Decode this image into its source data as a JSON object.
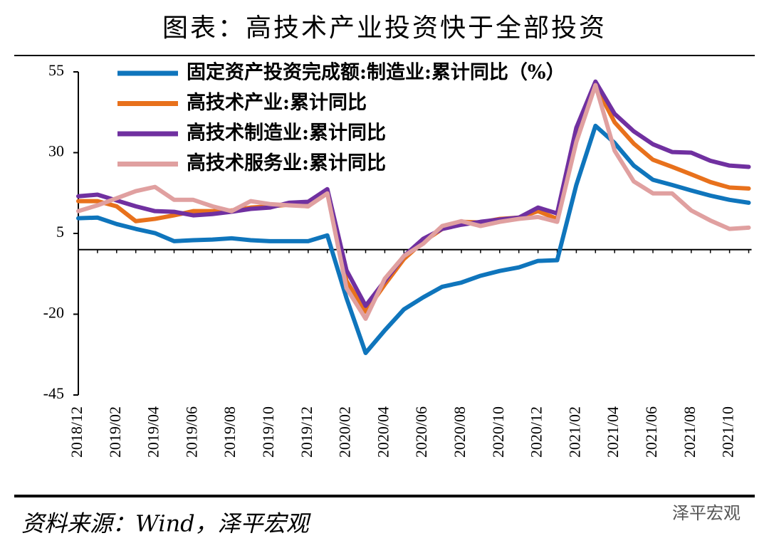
{
  "chart_data": {
    "type": "line",
    "title": "图表：高技术产业投资快于全部投资",
    "source": "资料来源：Wind，泽平宏观",
    "watermark": "泽平宏观",
    "legend": "upper left",
    "categories": [
      "2018/12",
      null,
      "2019/02",
      null,
      "2019/04",
      null,
      "2019/06",
      null,
      "2019/08",
      null,
      "2019/10",
      null,
      "2019/12",
      null,
      "2020/02",
      null,
      "2020/04",
      null,
      "2020/06",
      null,
      "2020/08",
      null,
      "2020/10",
      null,
      "2020/12",
      null,
      "2021/02",
      null,
      "2021/04",
      null,
      "2021/06",
      null,
      "2021/08",
      null,
      "2021/10",
      null
    ],
    "ylim": [
      -45,
      55
    ],
    "yticks": [
      55,
      30,
      5,
      -20,
      -45
    ],
    "series": [
      {
        "name": "固定资产投资完成额:制造业:累计同比（%）",
        "color": "#0f75bc",
        "values": [
          9.7,
          9.9,
          7.9,
          6.4,
          5.1,
          2.6,
          2.9,
          3.1,
          3.5,
          2.9,
          2.6,
          2.6,
          2.6,
          4.4,
          -15,
          -32,
          -25,
          -18.5,
          -14.8,
          -11.5,
          -10.2,
          -8.1,
          -6.6,
          -5.5,
          -3.5,
          -3.3,
          20,
          38.3,
          33,
          26,
          21.6,
          20,
          18.3,
          16.7,
          15.4,
          14.5
        ]
      },
      {
        "name": "高技术产业:累计同比",
        "color": "#e8711c",
        "values": [
          15,
          15,
          13.4,
          8.8,
          9.5,
          10.6,
          11.9,
          11.9,
          12.1,
          13,
          13.4,
          13.9,
          13.4,
          18.3,
          -9.7,
          -19.2,
          -10.8,
          -2.9,
          2.4,
          6.4,
          8.6,
          8.4,
          9.5,
          9.9,
          11.9,
          9.5,
          35.5,
          50.9,
          39.4,
          32.8,
          27.8,
          25.6,
          23.3,
          20.9,
          19.2,
          18.9
        ]
      },
      {
        "name": "高技术制造业:累计同比",
        "color": "#7030a0",
        "values": [
          16.5,
          17,
          15.2,
          13.4,
          11.9,
          11.7,
          10.6,
          11,
          11.7,
          12.6,
          13,
          14.5,
          14.8,
          18.7,
          -6.4,
          -17.4,
          -9.7,
          -2,
          3.3,
          6.4,
          7.7,
          8.6,
          9.3,
          9.9,
          13,
          11.2,
          37.7,
          52,
          42,
          36.6,
          32.6,
          30.2,
          30,
          27.5,
          26,
          25.6
        ]
      },
      {
        "name": "高技术服务业:累计同比",
        "color": "#e0a0a0",
        "values": [
          11.9,
          13.7,
          15.9,
          18.1,
          19.4,
          15.4,
          15.4,
          13.4,
          11.9,
          15,
          14.1,
          13.7,
          13.4,
          17.4,
          -11.9,
          -21.4,
          -9,
          -2,
          1.8,
          7.3,
          8.8,
          7.3,
          8.6,
          9.5,
          10.1,
          8.6,
          33.3,
          50.9,
          30.6,
          21.1,
          17.4,
          17.4,
          12.1,
          9,
          6.4,
          6.8
        ]
      }
    ]
  }
}
